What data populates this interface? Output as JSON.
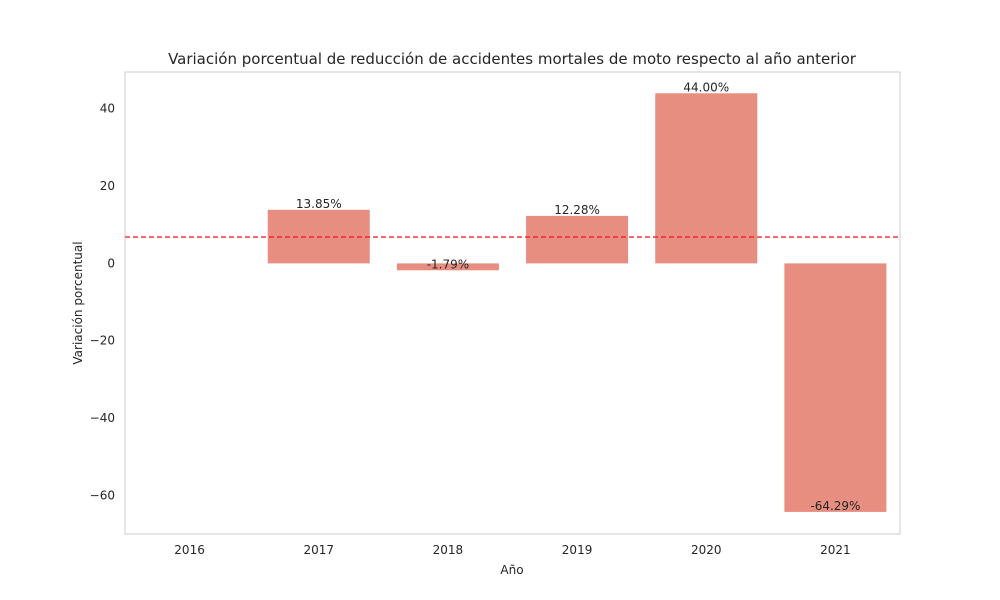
{
  "chart_data": {
    "type": "bar",
    "title": "Variación porcentual de reducción de accidentes mortales de moto respecto al año anterior",
    "xlabel": "Año",
    "ylabel": "Variación porcentual",
    "categories": [
      "2016",
      "2017",
      "2018",
      "2019",
      "2020",
      "2021"
    ],
    "values": [
      null,
      13.85,
      -1.79,
      12.28,
      44.0,
      -64.29
    ],
    "data_labels": [
      "",
      "13.85%",
      "-1.79%",
      "12.28%",
      "44.00%",
      "-64.29%"
    ],
    "ylim": [
      -70,
      49.5
    ],
    "yticks": [
      40,
      20,
      0,
      -20,
      -40,
      -60
    ],
    "ytick_labels": [
      "40",
      "20",
      "0",
      "−20",
      "−40",
      "−60"
    ],
    "reference_line": {
      "value": 6.83,
      "style": "dashed",
      "color": "#e8141c"
    },
    "bar_color": "#e88e80",
    "grid": false,
    "legend": "none"
  }
}
